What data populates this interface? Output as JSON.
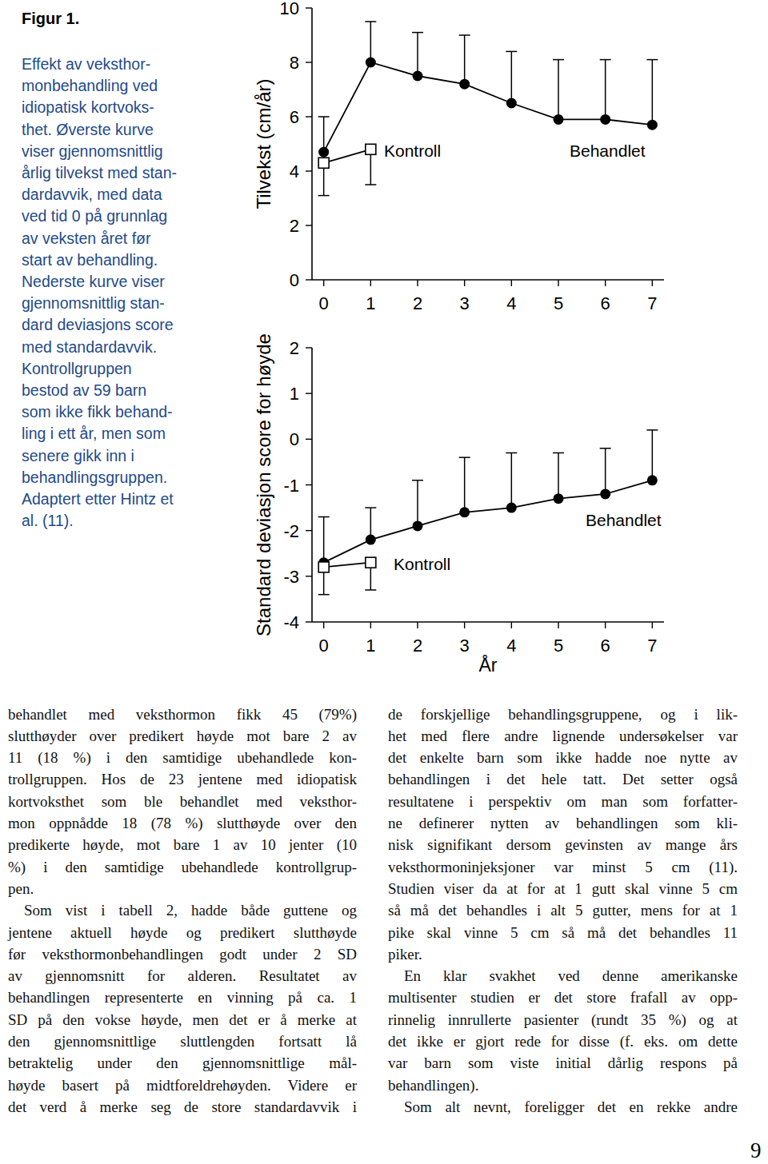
{
  "caption": {
    "label": "Figur 1.",
    "lines": [
      "Effekt av veksthor-",
      "monbehandling ved",
      "idiopatisk kortvoks-",
      "thet. Øverste kurve",
      "viser gjennomsnittlig",
      "årlig tilvekst med stan-",
      "dardavvik, med data",
      "ved tid 0 på grunnlag",
      "av veksten året før",
      "start av behandling.",
      "Nederste kurve viser",
      "gjennomsnittlig stan-",
      "dard deviasjons score",
      "med standardavvik.",
      "Kontrollgruppen",
      "bestod av 59 barn",
      "som ikke fikk behand-",
      "ling i ett år, men som",
      "senere gikk inn  i",
      "behandlingsgruppen.",
      "Adaptert etter Hintz et",
      "al. (11)."
    ]
  },
  "chart_data": [
    {
      "type": "line",
      "y_label": "Tilvekst (cm/år)",
      "x": [
        0,
        1,
        2,
        3,
        4,
        5,
        6,
        7
      ],
      "xlim": [
        -0.25,
        7.25
      ],
      "xticks": [
        0,
        1,
        2,
        3,
        4,
        5,
        6,
        7
      ],
      "ylim": [
        0,
        10
      ],
      "yticks": [
        0,
        2,
        4,
        6,
        8,
        10
      ],
      "series": [
        {
          "name": "Behandlet",
          "color": "#000000",
          "marker": "circle",
          "line_style": "solid",
          "values": [
            4.7,
            8.0,
            7.5,
            7.2,
            6.5,
            5.9,
            5.9,
            5.7
          ],
          "errors": [
            1.3,
            1.5,
            1.6,
            1.8,
            1.9,
            2.2,
            2.2,
            2.4
          ]
        },
        {
          "name": "Kontroll",
          "color": "#000000",
          "marker": "square",
          "line_style": "solid",
          "values": [
            4.3,
            4.8,
            null,
            null,
            null,
            null,
            null,
            null
          ],
          "errors": [
            1.2,
            1.3,
            null,
            null,
            null,
            null,
            null,
            null
          ]
        }
      ]
    },
    {
      "type": "line",
      "y_label": "Standard deviasjon score for høyde",
      "x_label": "År",
      "x": [
        0,
        1,
        2,
        3,
        4,
        5,
        6,
        7
      ],
      "xlim": [
        -0.25,
        7.25
      ],
      "xticks": [
        0,
        1,
        2,
        3,
        4,
        5,
        6,
        7
      ],
      "ylim": [
        -4,
        2
      ],
      "yticks": [
        -4,
        -3,
        -2,
        -1,
        0,
        1,
        2
      ],
      "series": [
        {
          "name": "Behandlet",
          "color": "#000000",
          "marker": "circle",
          "line_style": "solid",
          "values": [
            -2.7,
            -2.2,
            -1.9,
            -1.6,
            -1.5,
            -1.3,
            -1.2,
            -0.9
          ],
          "errors": [
            1.0,
            0.7,
            1.0,
            1.2,
            1.2,
            1.0,
            1.0,
            1.1
          ]
        },
        {
          "name": "Kontroll",
          "color": "#000000",
          "marker": "square",
          "line_style": "solid",
          "values": [
            -2.8,
            -2.7,
            null,
            null,
            null,
            null,
            null,
            null
          ],
          "errors": [
            0.6,
            0.6,
            null,
            null,
            null,
            null,
            null,
            null
          ]
        }
      ]
    }
  ],
  "body": {
    "columns": [
      {
        "paragraphs": [
          {
            "lines": [
              "behandlet med veksthormon fikk 45 (79%)",
              "slutthøyder over predikert høyde mot bare 2 av",
              "11 (18 %) i den samtidige ubehandlede kon-",
              "trollgruppen. Hos de 23 jentene med idiopatisk",
              "kortvoksthet som ble behandlet med veksthor-",
              "mon oppnådde 18 (78 %) slutthøyde over den",
              "predikerte høyde, mot bare 1 av 10 jenter (10",
              "%) i den samtidige ubehandlede kontrollgrup-",
              "pen."
            ]
          },
          {
            "lines": [
              "Som vist i tabell 2, hadde både guttene og",
              "jentene aktuell høyde og predikert slutthøyde",
              "før veksthormonbehandlingen godt under 2 SD",
              "av gjennomsnitt for alderen. Resultatet av",
              "behandlingen representerte en vinning på ca. 1",
              "SD på den vokse høyde, men det er å merke at",
              "den gjennomsnittlige sluttlengden fortsatt lå",
              "betraktelig under den gjennomsnittlige mål-",
              "høyde basert på midtforeldrehøyden. Videre er",
              "det verd å merke seg de store standardavvik i"
            ]
          }
        ]
      },
      {
        "paragraphs": [
          {
            "lines": [
              "de forskjellige behandlingsgruppene, og i lik-",
              "het med flere andre lignende undersøkelser var",
              "det enkelte barn som ikke hadde noe nytte av",
              "behandlingen i det hele tatt. Det setter også",
              "resultatene i perspektiv om man som forfatter-",
              "ne definerer nytten av behandlingen som kli-",
              "nisk signifikant dersom gevinsten av mange års",
              "veksthormoninjeksjoner var minst 5 cm (11).",
              "Studien viser da at for at 1 gutt skal vinne 5 cm",
              "så må det behandles i alt 5 gutter, mens for at 1",
              "pike skal vinne 5 cm så må det behandles 11",
              "piker."
            ]
          },
          {
            "lines": [
              "En klar svakhet ved denne amerikanske",
              "multisenter studien er det store frafall av opp-",
              "rinnelig innrullerte pasienter (rundt 35 %) og at",
              "det ikke er gjort rede for disse (f. eks. om dette",
              "var barn som viste initial dårlig respons på",
              "behandlingen)."
            ]
          },
          {
            "lines": [
              "Som alt nevnt, foreligger det en rekke andre"
            ]
          }
        ]
      }
    ]
  },
  "page_number": "9"
}
